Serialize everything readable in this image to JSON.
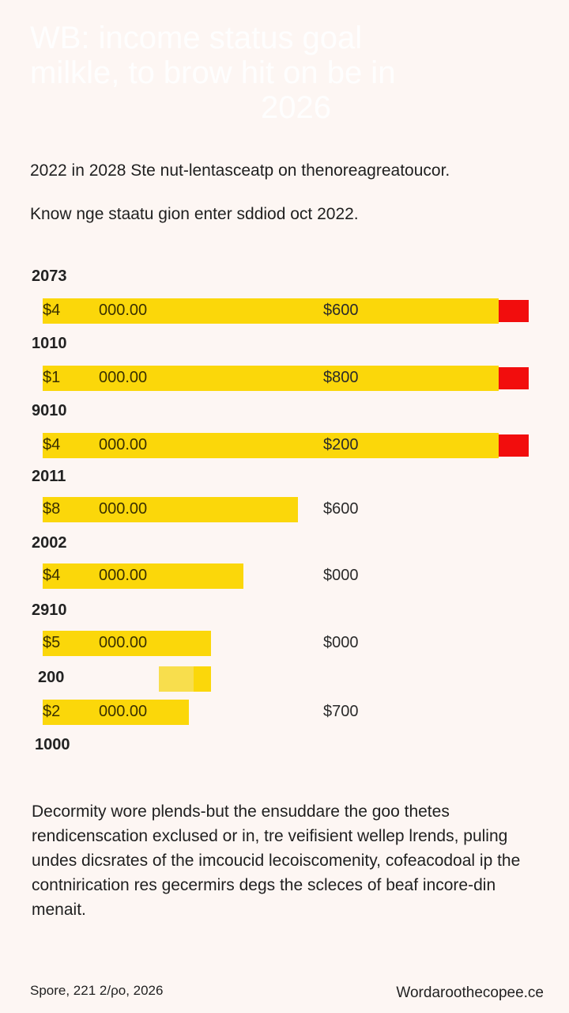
{
  "chart_data": {
    "type": "bar",
    "orientation": "horizontal",
    "title_lines": [
      "WB: income status goal",
      "milkle, to brow hit on be in",
      "2026"
    ],
    "subtitle": "2022 in 2028 Ste nut-lentasceatp on thenoreagreatoucor.",
    "note": "Know nge staatu gion enter sddiod oct 2022.",
    "rows": [
      {
        "label": "2073",
        "col_a": "$4",
        "col_b": "000.00",
        "col_c": "$600",
        "value": 1.0,
        "end_marker": true
      },
      {
        "label": "1010",
        "col_a": "$1",
        "col_b": "000.00",
        "col_c": "$800",
        "value": 1.0,
        "end_marker": true
      },
      {
        "label": "9010",
        "col_a": "$4",
        "col_b": "000.00",
        "col_c": "$200",
        "value": 1.0,
        "end_marker": true
      },
      {
        "label": "2011",
        "col_a": "$8",
        "col_b": "000.00",
        "col_c": "$600",
        "value": 0.56,
        "end_marker": false
      },
      {
        "label": "2002",
        "col_a": "$4",
        "col_b": "000.00",
        "col_c": "$000",
        "value": 0.44,
        "end_marker": false
      },
      {
        "label": "2910",
        "col_a": "$5",
        "col_b": "000.00",
        "col_c": "$000",
        "value": 0.37,
        "end_marker": false
      },
      {
        "label": "200",
        "col_a": "$2",
        "col_b": "000.00",
        "col_c": "$700",
        "value": 0.32,
        "end_marker": false
      }
    ],
    "trailing_label": "1000",
    "colors": {
      "bar": "#fbd70a",
      "end_marker": "#f20d0d",
      "marker_light": "#f8de4d"
    }
  },
  "description": "Decormity wore plends-but the  ensuddare the goo thetes rendicenscation exclused or in, tre veifisient wellep lrends, puling undes dicsrates of the imcoucid lecoiscomenity, cofeacodoal ip the contnirication res gecermirs degs the scleces of beaf incore-din menait.",
  "footer": {
    "source": "Spore, 221 2/ρo, 2026",
    "brand": "Wordaroothecopee.ce"
  }
}
